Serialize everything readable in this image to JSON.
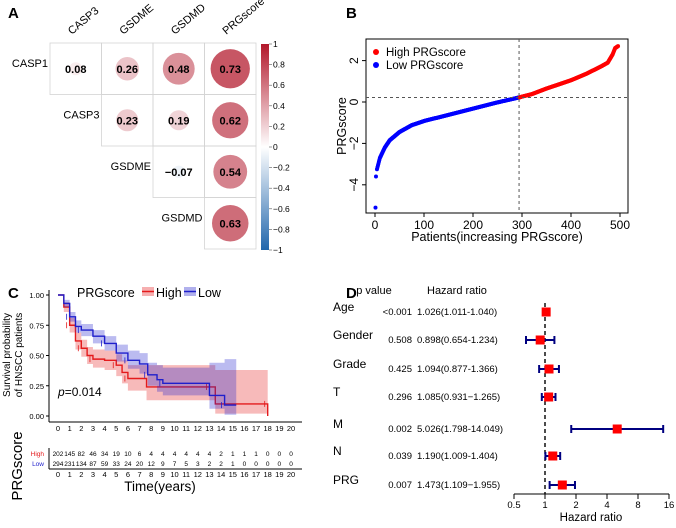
{
  "panels": {
    "a": "A",
    "b": "B",
    "c": "C",
    "d": "D"
  },
  "chart_data": [
    {
      "type": "heatmap",
      "panel": "A",
      "columns": [
        "CASP3",
        "GSDME",
        "GSDMD",
        "PRGscore"
      ],
      "rows": [
        "CASP1",
        "CASP3",
        "GSDME",
        "GSDMD"
      ],
      "cells": [
        [
          0.08,
          0.26,
          0.48,
          0.73
        ],
        [
          null,
          0.23,
          0.19,
          0.62
        ],
        [
          null,
          null,
          -0.07,
          0.54
        ],
        [
          null,
          null,
          null,
          0.63
        ]
      ],
      "cell_labels": [
        [
          "0.08",
          "0.26",
          "0.48",
          "0.73"
        ],
        [
          "",
          "0.23",
          "0.19",
          "0.62"
        ],
        [
          "",
          "",
          "−0.07",
          "0.54"
        ],
        [
          "",
          "",
          "",
          "0.63"
        ]
      ],
      "colorbar": {
        "range": [
          -1,
          1
        ],
        "ticks": [
          "1",
          "0.8",
          "0.6",
          "0.4",
          "0.2",
          "0",
          "−0.2",
          "−0.4",
          "−0.6",
          "−0.8",
          "−1"
        ],
        "low_color": "#2166AC",
        "mid_color": "#FFFFFF",
        "high_color": "#B2182B"
      }
    },
    {
      "type": "scatter",
      "panel": "B",
      "xlabel": "Patients(increasing PRGscore)",
      "ylabel": "PRGscore",
      "xticks": [
        "0",
        "100",
        "200",
        "300",
        "400",
        "500"
      ],
      "yticks": [
        "2",
        "0",
        "−2",
        "−4"
      ],
      "xlim": [
        -10,
        520
      ],
      "ylim": [
        -5.4,
        3.0
      ],
      "cutoff_x": 294,
      "cutoff_y": 0.22,
      "legend": [
        {
          "label": "High PRGscore",
          "color": "#FF0000"
        },
        {
          "label": "Low PRGscore",
          "color": "#0000FF"
        }
      ],
      "legend_position": "top-left",
      "curve": [
        [
          1,
          -5.1
        ],
        [
          2,
          -3.6
        ],
        [
          4,
          -3.25
        ],
        [
          10,
          -2.7
        ],
        [
          20,
          -2.2
        ],
        [
          30,
          -1.85
        ],
        [
          50,
          -1.45
        ],
        [
          75,
          -1.12
        ],
        [
          100,
          -0.92
        ],
        [
          150,
          -0.62
        ],
        [
          200,
          -0.32
        ],
        [
          250,
          -0.02
        ],
        [
          294,
          0.22
        ],
        [
          320,
          0.38
        ],
        [
          350,
          0.65
        ],
        [
          400,
          1.05
        ],
        [
          430,
          1.35
        ],
        [
          460,
          1.7
        ],
        [
          475,
          1.9
        ],
        [
          485,
          2.3
        ],
        [
          490,
          2.6
        ],
        [
          496,
          2.7
        ]
      ]
    },
    {
      "type": "line",
      "panel": "C",
      "legend_title": "PRGscore",
      "legend": [
        {
          "label": "High",
          "color": "#E41A1C"
        },
        {
          "label": "Low",
          "color": "#1F1FCC"
        }
      ],
      "ylabel": [
        "Survival probability",
        "of HNSCC patients"
      ],
      "xlabel": "Time(years)",
      "yticks": [
        "1.00",
        "0.75",
        "0.50",
        "0.25",
        "0.00"
      ],
      "xticks": [
        "0",
        "1",
        "2",
        "3",
        "4",
        "5",
        "6",
        "7",
        "8",
        "9",
        "10",
        "11",
        "12",
        "13",
        "14",
        "15",
        "16",
        "17",
        "18",
        "19",
        "20"
      ],
      "xlim": [
        0,
        20
      ],
      "ylim": [
        0,
        1
      ],
      "pvalue_label": "p",
      "pvalue": "=0.014",
      "series": [
        {
          "name": "High",
          "points": [
            [
              0,
              1,
              1,
              1
            ],
            [
              0.5,
              0.9,
              0.86,
              0.94
            ],
            [
              1,
              0.75,
              0.69,
              0.81
            ],
            [
              1.5,
              0.62,
              0.55,
              0.69
            ],
            [
              2,
              0.56,
              0.49,
              0.63
            ],
            [
              2.5,
              0.5,
              0.43,
              0.57
            ],
            [
              3,
              0.47,
              0.4,
              0.55
            ],
            [
              4,
              0.46,
              0.38,
              0.54
            ],
            [
              5,
              0.42,
              0.33,
              0.51
            ],
            [
              5.5,
              0.36,
              0.27,
              0.46
            ],
            [
              6,
              0.31,
              0.21,
              0.42
            ],
            [
              7.6,
              0.24,
              0.13,
              0.42
            ],
            [
              13,
              0.24,
              0.13,
              0.42
            ],
            [
              13.5,
              0.1,
              0.02,
              0.38
            ],
            [
              18,
              0.1,
              0.02,
              0.38
            ]
          ],
          "end": [
            18,
            0
          ]
        },
        {
          "name": "Low",
          "points": [
            [
              0,
              1,
              1,
              1
            ],
            [
              0.5,
              0.93,
              0.9,
              0.96
            ],
            [
              1,
              0.82,
              0.78,
              0.86
            ],
            [
              1.5,
              0.74,
              0.69,
              0.79
            ],
            [
              2,
              0.71,
              0.66,
              0.76
            ],
            [
              3,
              0.66,
              0.6,
              0.71
            ],
            [
              4,
              0.6,
              0.54,
              0.66
            ],
            [
              5,
              0.52,
              0.45,
              0.59
            ],
            [
              6,
              0.46,
              0.39,
              0.54
            ],
            [
              7,
              0.43,
              0.35,
              0.52
            ],
            [
              7.7,
              0.34,
              0.25,
              0.44
            ],
            [
              8.5,
              0.3,
              0.2,
              0.42
            ],
            [
              9,
              0.27,
              0.17,
              0.4
            ],
            [
              13,
              0.17,
              0.06,
              0.44
            ],
            [
              14.3,
              0.09,
              0.01,
              0.47
            ],
            [
              15.3,
              0.09,
              0.01,
              0.47
            ]
          ]
        }
      ],
      "risk_table": {
        "title": "PRGscore",
        "rows": [
          {
            "label": "High",
            "color": "#E41A1C",
            "values": [
              "202",
              "145",
              "82",
              "46",
              "34",
              "19",
              "10",
              "6",
              "4",
              "4",
              "4",
              "4",
              "4",
              "4",
              "2",
              "1",
              "1",
              "1",
              "0",
              "0",
              "0"
            ]
          },
          {
            "label": "Low",
            "color": "#1F1FCC",
            "values": [
              "294",
              "231",
              "134",
              "87",
              "59",
              "33",
              "24",
              "20",
              "12",
              "9",
              "7",
              "5",
              "3",
              "2",
              "2",
              "1",
              "0",
              "0",
              "0",
              "0",
              "0"
            ]
          }
        ]
      }
    },
    {
      "type": "forest",
      "panel": "D",
      "header": {
        "p": "p value",
        "hr": "Hazard ratio"
      },
      "xlabel": "Hazard ratio",
      "xscale": "log2",
      "xticks": [
        "0.5",
        "1",
        "2",
        "4",
        "8",
        "16"
      ],
      "xlim": [
        0.5,
        16
      ],
      "reference": 1,
      "point_color": "#FF0000",
      "ci_color": "#000080",
      "rows": [
        {
          "name": "Age",
          "p": "<0.001",
          "text": "1.026(1.011-1.040)",
          "hr": 1.026,
          "lo": 1.011,
          "hi": 1.04
        },
        {
          "name": "Gender",
          "p": "0.508",
          "text": "0.898(0.654-1.234)",
          "hr": 0.898,
          "lo": 0.654,
          "hi": 1.234
        },
        {
          "name": "Grade",
          "p": "0.425",
          "text": "1.094(0.877-1.366)",
          "hr": 1.094,
          "lo": 0.877,
          "hi": 1.366
        },
        {
          "name": "T",
          "p": "0.296",
          "text": "1.085(0.931−1.265)",
          "hr": 1.085,
          "lo": 0.931,
          "hi": 1.265
        },
        {
          "name": "M",
          "p": "0.002",
          "text": "5.026(1.798-14.049)",
          "hr": 5.026,
          "lo": 1.798,
          "hi": 14.049
        },
        {
          "name": "N",
          "p": "0.039",
          "text": "1.190(1.009-1.404)",
          "hr": 1.19,
          "lo": 1.009,
          "hi": 1.404
        },
        {
          "name": "PRG",
          "p": "0.007",
          "text": "1.473(1.109−1.955)",
          "hr": 1.473,
          "lo": 1.109,
          "hi": 1.955
        }
      ]
    }
  ]
}
